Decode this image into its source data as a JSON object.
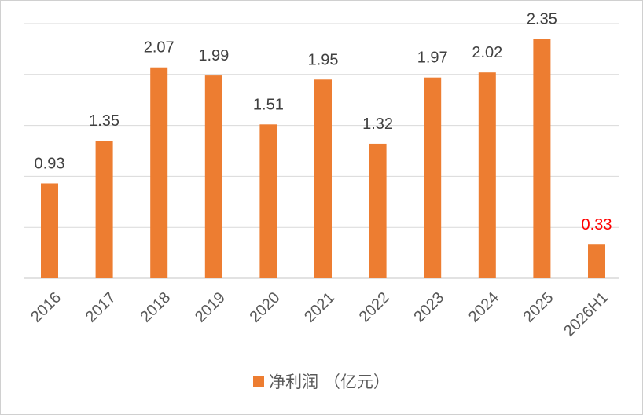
{
  "chart_data": {
    "type": "bar",
    "categories": [
      "2016",
      "2017",
      "2018",
      "2019",
      "2020",
      "2021",
      "2022",
      "2023",
      "2024",
      "2025",
      "2026H1"
    ],
    "series": [
      {
        "name": "净利润 （亿元）",
        "values": [
          0.93,
          1.35,
          2.07,
          1.99,
          1.51,
          1.95,
          1.32,
          1.97,
          2.02,
          2.35,
          0.33
        ],
        "labels": [
          "0.93",
          "1.35",
          "2.07",
          "1.99",
          "1.51",
          "1.95",
          "1.32",
          "1.97",
          "2.02",
          "2.35",
          "0.33"
        ],
        "color": "#ED7D31"
      }
    ],
    "highlight_label_color": "#FF0000",
    "highlight_index": 10,
    "ylim": [
      0,
      2.5
    ],
    "y_gridlines": [
      0,
      0.5,
      1.0,
      1.5,
      2.0,
      2.5
    ],
    "grid": true,
    "legend_position": "bottom",
    "xlabel": "",
    "ylabel": "",
    "title": ""
  }
}
